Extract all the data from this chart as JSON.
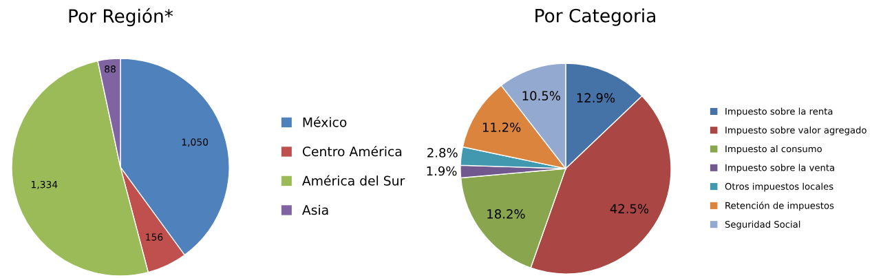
{
  "chart_data": [
    {
      "type": "pie",
      "title": "Por Región*",
      "categories": [
        "México",
        "Centro América",
        "América del Sur",
        "Asia"
      ],
      "values": [
        1050,
        156,
        1334,
        88
      ],
      "value_labels": [
        "1,050",
        "156",
        "1,334",
        "88"
      ],
      "colors": [
        "#4f81bd",
        "#c0504d",
        "#9bbb59",
        "#8064a2"
      ],
      "legend": "right"
    },
    {
      "type": "pie",
      "title": "Por Categoria",
      "categories": [
        "Impuesto sobre la renta",
        "Impuesto sobre valor agregado",
        "Impuesto al consumo",
        "Impuesto sobre la venta",
        "Otros impuestos locales",
        "Retención de impuestos",
        "Seguridad Social"
      ],
      "values": [
        12.9,
        42.5,
        18.2,
        1.9,
        2.8,
        11.2,
        10.5
      ],
      "value_labels": [
        "12.9%",
        "42.5%",
        "18.2%",
        "1.9%",
        "2.8%",
        "11.2%",
        "10.5%"
      ],
      "colors": [
        "#4572a7",
        "#aa4643",
        "#89a54e",
        "#71588f",
        "#4198af",
        "#db843d",
        "#93a9cf"
      ],
      "legend": "right"
    }
  ]
}
